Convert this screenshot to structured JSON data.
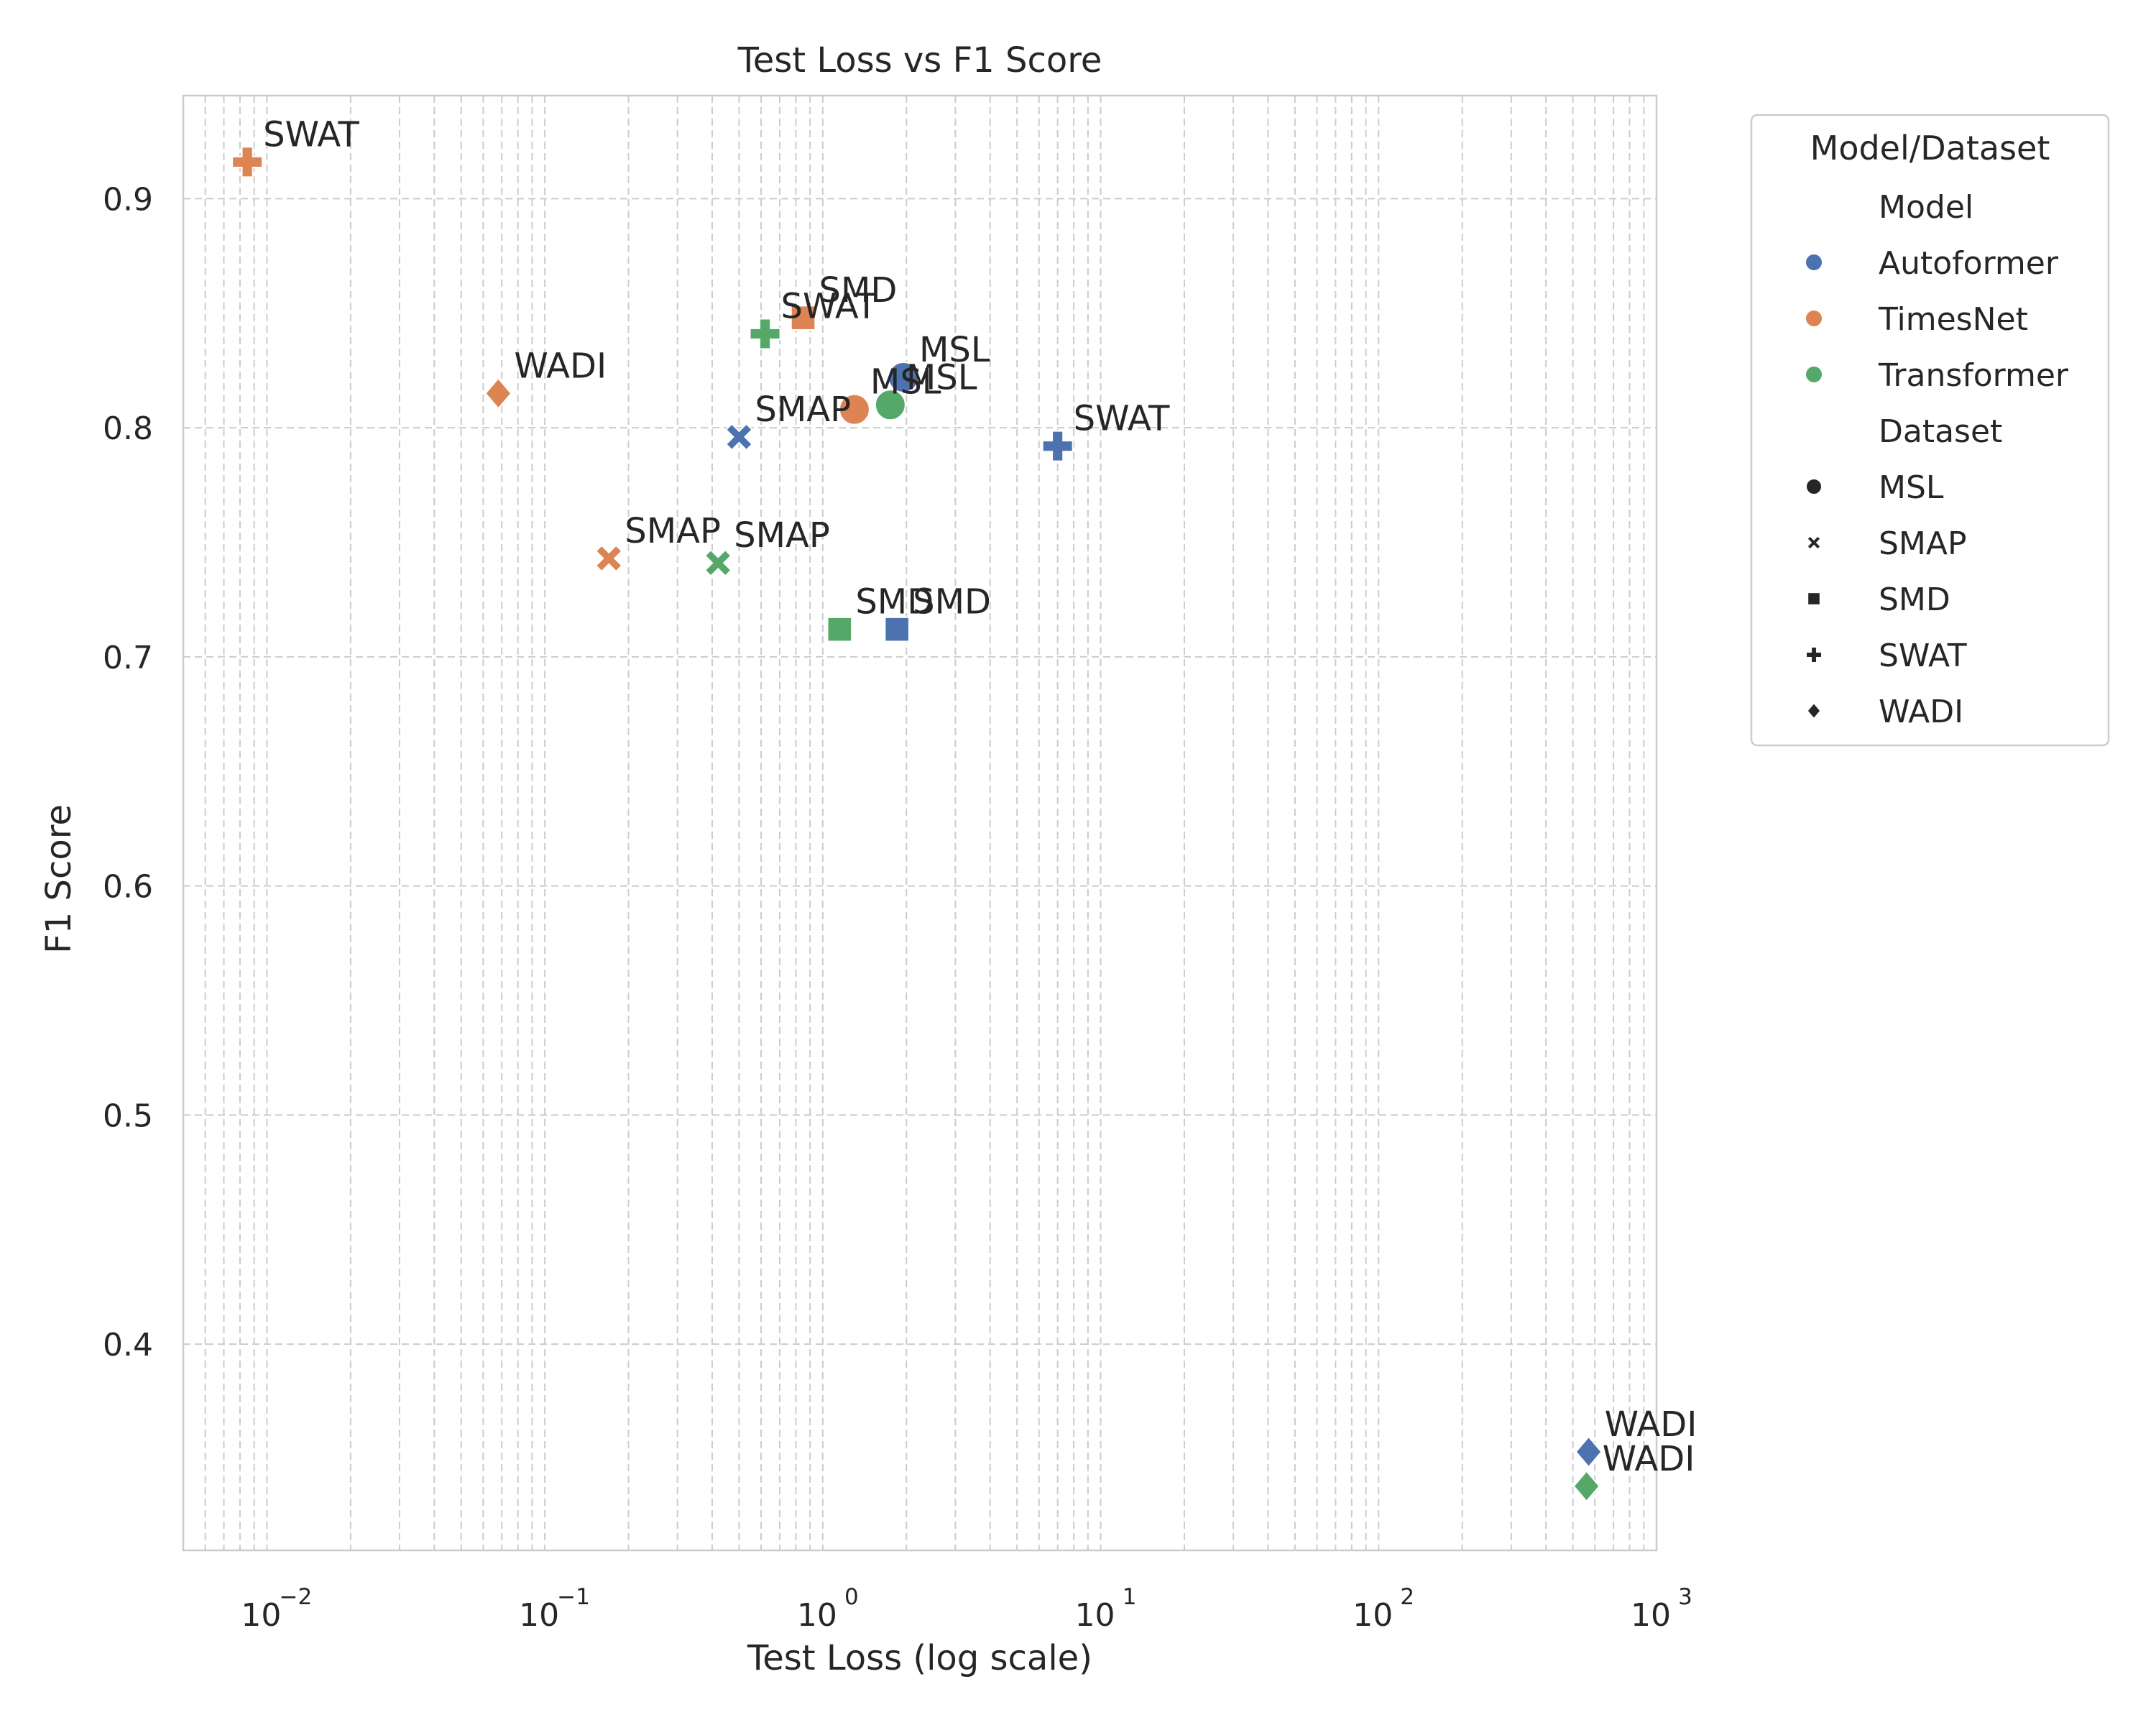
{
  "chart_data": {
    "type": "scatter",
    "title": "Test Loss vs F1 Score",
    "xlabel": "Test Loss (log scale)",
    "ylabel": "F1 Score",
    "xscale": "log",
    "xlim": [
      0.005,
      1000
    ],
    "ylim": [
      0.31,
      0.945
    ],
    "xticks": [
      {
        "value": 0.01,
        "base": "10",
        "exp": "−2"
      },
      {
        "value": 0.1,
        "base": "10",
        "exp": "−1"
      },
      {
        "value": 1,
        "base": "10",
        "exp": "0"
      },
      {
        "value": 10,
        "base": "10",
        "exp": "1"
      },
      {
        "value": 100,
        "base": "10",
        "exp": "2"
      },
      {
        "value": 1000,
        "base": "10",
        "exp": "3"
      }
    ],
    "yticks": [
      {
        "value": 0.4,
        "label": "0.4"
      },
      {
        "value": 0.5,
        "label": "0.5"
      },
      {
        "value": 0.6,
        "label": "0.6"
      },
      {
        "value": 0.7,
        "label": "0.7"
      },
      {
        "value": 0.8,
        "label": "0.8"
      },
      {
        "value": 0.9,
        "label": "0.9"
      }
    ],
    "grid": true,
    "legend_position": "outside-right",
    "colors": {
      "Autoformer": "#4c72b0",
      "TimesNet": "#dd8452",
      "Transformer": "#55a868"
    },
    "markers": {
      "MSL": "circle",
      "SMAP": "x",
      "SMD": "square",
      "SWAT": "plus",
      "WADI": "diamond"
    },
    "points": [
      {
        "model": "Autoformer",
        "dataset": "MSL",
        "label": "MSL",
        "x": 1.95,
        "y": 0.822
      },
      {
        "model": "Autoformer",
        "dataset": "SMAP",
        "label": "SMAP",
        "x": 0.5,
        "y": 0.796
      },
      {
        "model": "Autoformer",
        "dataset": "SMD",
        "label": "SMD",
        "x": 1.85,
        "y": 0.712
      },
      {
        "model": "Autoformer",
        "dataset": "SWAT",
        "label": "SWAT",
        "x": 7.0,
        "y": 0.792
      },
      {
        "model": "Autoformer",
        "dataset": "WADI",
        "label": "WADI",
        "x": 570,
        "y": 0.353
      },
      {
        "model": "TimesNet",
        "dataset": "MSL",
        "label": "MSL",
        "x": 1.3,
        "y": 0.808
      },
      {
        "model": "TimesNet",
        "dataset": "SMAP",
        "label": "SMAP",
        "x": 0.17,
        "y": 0.743
      },
      {
        "model": "TimesNet",
        "dataset": "SMD",
        "label": "SMD",
        "x": 0.85,
        "y": 0.848
      },
      {
        "model": "TimesNet",
        "dataset": "SWAT",
        "label": "SWAT",
        "x": 0.0085,
        "y": 0.916
      },
      {
        "model": "TimesNet",
        "dataset": "WADI",
        "label": "WADI",
        "x": 0.068,
        "y": 0.815
      },
      {
        "model": "Transformer",
        "dataset": "MSL",
        "label": "MSL",
        "x": 1.75,
        "y": 0.81
      },
      {
        "model": "Transformer",
        "dataset": "SMAP",
        "label": "SMAP",
        "x": 0.42,
        "y": 0.741
      },
      {
        "model": "Transformer",
        "dataset": "SMD",
        "label": "SMD",
        "x": 1.15,
        "y": 0.712
      },
      {
        "model": "Transformer",
        "dataset": "SWAT",
        "label": "SWAT",
        "x": 0.62,
        "y": 0.841
      },
      {
        "model": "Transformer",
        "dataset": "WADI",
        "label": "WADI",
        "x": 560,
        "y": 0.338
      }
    ],
    "legend": {
      "title": "Model/Dataset",
      "model_heading": "Model",
      "dataset_heading": "Dataset",
      "models": [
        "Autoformer",
        "TimesNet",
        "Transformer"
      ],
      "datasets": [
        "MSL",
        "SMAP",
        "SMD",
        "SWAT",
        "WADI"
      ]
    }
  }
}
